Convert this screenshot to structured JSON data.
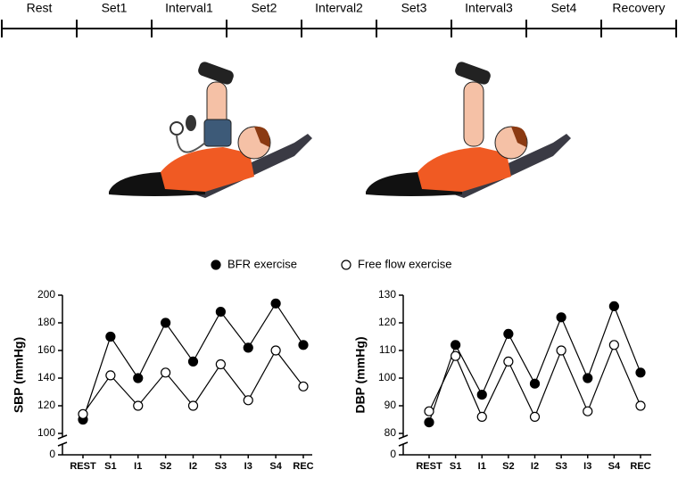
{
  "timeline": [
    "Rest",
    "Set1",
    "Interval1",
    "Set2",
    "Interval2",
    "Set3",
    "Interval3",
    "Set4",
    "Recovery"
  ],
  "chart_data": [
    {
      "type": "line",
      "y_label": "SBP (mmHg)",
      "axis_break": true,
      "categories": [
        "REST",
        "S1",
        "I1",
        "S2",
        "I2",
        "S3",
        "I3",
        "S4",
        "REC"
      ],
      "ylim": [
        100,
        200
      ],
      "yticks": [
        0,
        100,
        120,
        140,
        160,
        180,
        200
      ],
      "series": [
        {
          "name": "BFR exercise",
          "color": "#000000",
          "values": [
            110,
            170,
            140,
            180,
            152,
            188,
            162,
            194,
            164
          ]
        },
        {
          "name": "Free flow exercise",
          "color": "#ffffff",
          "values": [
            114,
            142,
            120,
            144,
            120,
            150,
            124,
            160,
            134
          ]
        }
      ]
    },
    {
      "type": "line",
      "y_label": "DBP (mmHg)",
      "axis_break": true,
      "categories": [
        "REST",
        "S1",
        "I1",
        "S2",
        "I2",
        "S3",
        "I3",
        "S4",
        "REC"
      ],
      "ylim": [
        80,
        130
      ],
      "yticks": [
        0,
        80,
        90,
        100,
        110,
        120,
        130
      ],
      "series": [
        {
          "name": "BFR exercise",
          "color": "#000000",
          "values": [
            84,
            112,
            94,
            116,
            98,
            122,
            100,
            126,
            102
          ]
        },
        {
          "name": "Free flow exercise",
          "color": "#ffffff",
          "values": [
            88,
            108,
            86,
            106,
            86,
            110,
            88,
            112,
            90
          ]
        }
      ]
    }
  ]
}
